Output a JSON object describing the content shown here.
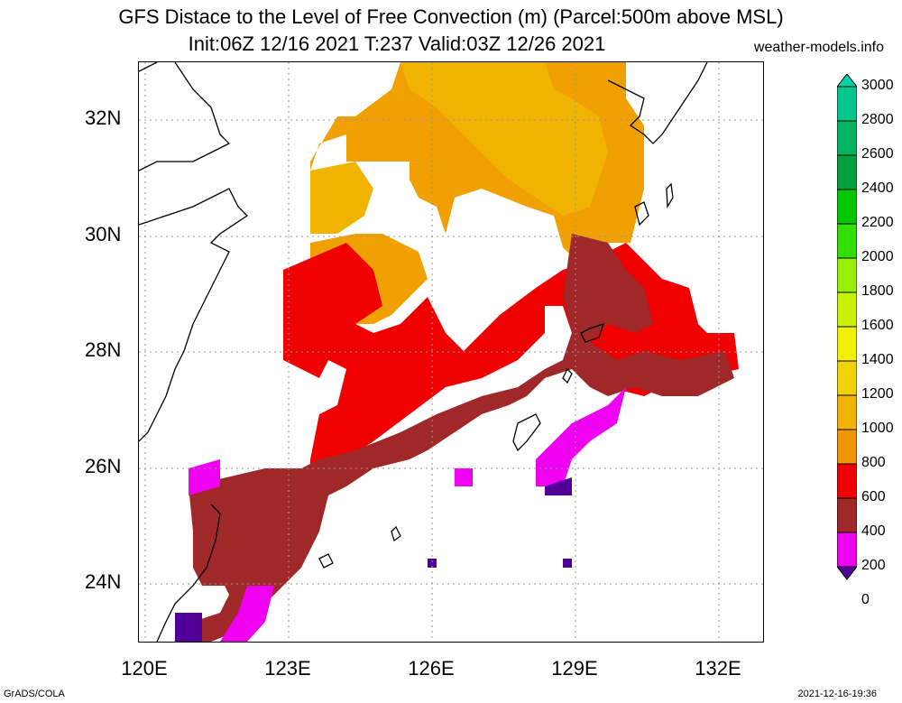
{
  "title_line1": "GFS Distace to the Level of Free Convection (m) (Parcel:500m above MSL)",
  "title_line2": "Init:06Z 12/16 2021 T:237 Valid:03Z 12/26 2021",
  "site": "weather-models.info",
  "footer_left": "GrADS/COLA",
  "footer_right": "2021-12-16-19:36",
  "axes": {
    "lat_labels": [
      "32N",
      "30N",
      "28N",
      "26N",
      "24N"
    ],
    "lon_labels": [
      "120E",
      "123E",
      "126E",
      "129E",
      "132E"
    ]
  },
  "colorbar": {
    "labels": [
      "3000",
      "2800",
      "2600",
      "2400",
      "2200",
      "2000",
      "1800",
      "1600",
      "1400",
      "1200",
      "1000",
      "800",
      "600",
      "400",
      "200",
      "0"
    ],
    "colors": [
      "#00d2aa",
      "#00c88c",
      "#00b464",
      "#00a03c",
      "#00c800",
      "#32e000",
      "#96f000",
      "#c8f000",
      "#f0f000",
      "#f0d200",
      "#f0b400",
      "#f09600",
      "#f00000",
      "#a02828",
      "#f000f0",
      "#500096"
    ]
  }
}
